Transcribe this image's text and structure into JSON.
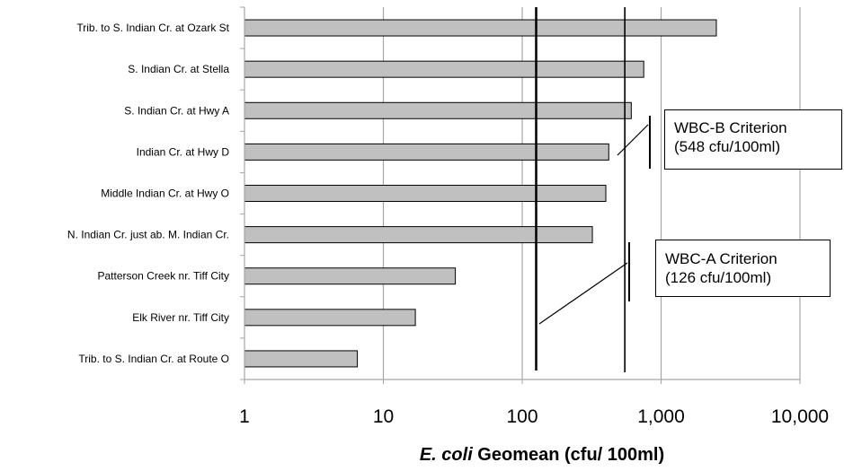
{
  "chart_data": {
    "type": "bar",
    "orientation": "horizontal",
    "x_scale": "log",
    "xlim": [
      1,
      10000
    ],
    "grid": true,
    "xlabel_italic": "E. coli",
    "xlabel_rest": " Geomean (cfu/ 100ml)",
    "x_tick_labels": [
      "1",
      "10",
      "100",
      "1,000",
      "10,000"
    ],
    "x_ticks": [
      1,
      10,
      100,
      1000,
      10000
    ],
    "categories": [
      "Trib. to S. Indian Cr. at Ozark St",
      "S. Indian Cr. at Stella",
      "S. Indian Cr. at Hwy A",
      "Indian Cr. at Hwy D",
      "Middle Indian Cr. at Hwy O",
      "N. Indian Cr. just ab. M. Indian Cr.",
      "Patterson Creek nr. Tiff City",
      "Elk River nr. Tiff City",
      "Trib. to S. Indian Cr. at Route O"
    ],
    "values": [
      2500,
      750,
      610,
      420,
      400,
      320,
      33,
      17,
      6.5
    ],
    "reference_lines": [
      {
        "value": 126,
        "label_line1": "WBC-A Criterion",
        "label_line2": "(126 cfu/100ml)"
      },
      {
        "value": 548,
        "label_line1": "WBC-B Criterion",
        "label_line2": "(548 cfu/100ml)"
      }
    ],
    "colors": {
      "bar_fill": "#c0c0c0",
      "bar_stroke": "#000000",
      "grid": "#a6a6a6"
    }
  }
}
